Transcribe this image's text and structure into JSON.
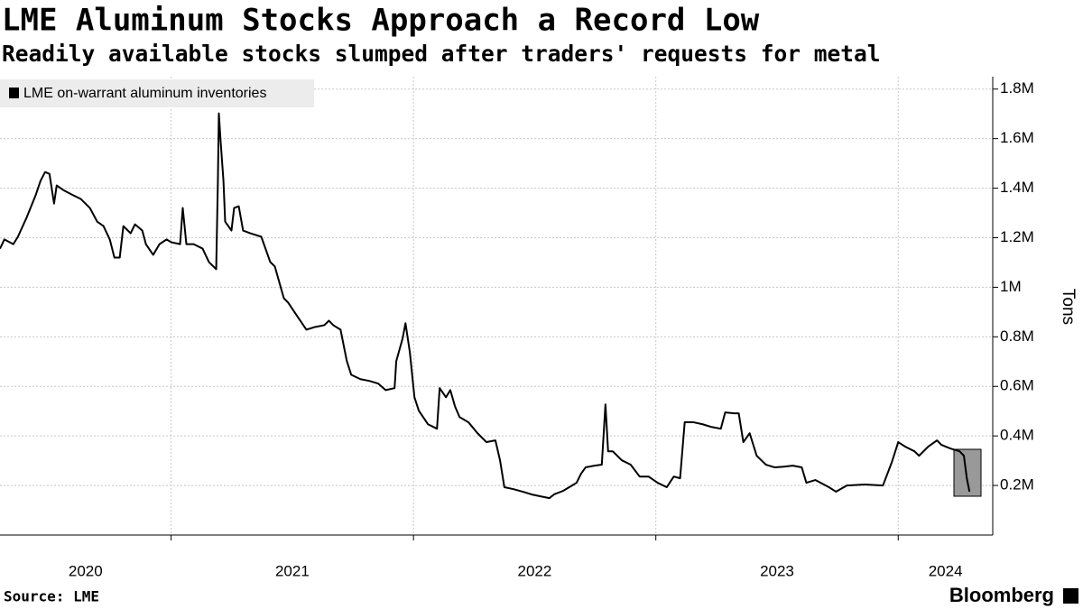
{
  "chart_data": {
    "type": "line",
    "title": "LME Aluminum Stocks Approach a Record Low",
    "subtitle": "Readily available stocks slumped after traders' requests for metal",
    "y_label": "Tons",
    "source": "Source: LME",
    "logo": "Bloomberg",
    "legend_position": "top-left",
    "grid": true,
    "x": [
      2020.294,
      2020.312,
      2020.349,
      2020.368,
      2020.405,
      2020.442,
      2020.461,
      2020.48,
      2020.498,
      2020.517,
      2020.528,
      2020.554,
      2020.591,
      2020.628,
      2020.665,
      2020.695,
      2020.721,
      2020.747,
      2020.766,
      2020.788,
      2020.803,
      2020.833,
      2020.851,
      2020.881,
      2020.896,
      2020.926,
      2020.952,
      2020.981,
      2021.0,
      2021.037,
      2021.048,
      2021.063,
      2021.093,
      2021.13,
      2021.156,
      2021.186,
      2021.193,
      2021.197,
      2021.204,
      2021.216,
      2021.223,
      2021.249,
      2021.26,
      2021.279,
      2021.297,
      2021.327,
      2021.372,
      2021.409,
      2021.428,
      2021.465,
      2021.483,
      2021.52,
      2021.558,
      2021.595,
      2021.632,
      2021.651,
      2021.669,
      2021.699,
      2021.725,
      2021.743,
      2021.781,
      2021.818,
      2021.855,
      2021.885,
      2021.922,
      2021.929,
      2021.955,
      2021.967,
      2021.985,
      2022.004,
      2022.022,
      2022.06,
      2022.097,
      2022.108,
      2022.134,
      2022.152,
      2022.171,
      2022.19,
      2022.227,
      2022.264,
      2022.301,
      2022.338,
      2022.357,
      2022.375,
      2022.413,
      2022.45,
      2022.487,
      2022.524,
      2022.561,
      2022.58,
      2022.617,
      2022.673,
      2022.691,
      2022.71,
      2022.747,
      2022.777,
      2022.792,
      2022.803,
      2022.822,
      2022.859,
      2022.896,
      2022.933,
      2022.97,
      2023.007,
      2023.045,
      2023.074,
      2023.1,
      2023.119,
      2023.156,
      2023.193,
      2023.23,
      2023.268,
      2023.286,
      2023.323,
      2023.342,
      2023.361,
      2023.387,
      2023.416,
      2023.454,
      2023.491,
      2023.528,
      2023.565,
      2023.602,
      2023.621,
      2023.658,
      2023.714,
      2023.743,
      2023.788,
      2023.862,
      2023.937,
      2023.974,
      2024.0,
      2024.03,
      2024.067,
      2024.086,
      2024.123,
      2024.16,
      2024.178,
      2024.216,
      2024.253,
      2024.271,
      2024.283,
      2024.294
    ],
    "series": [
      {
        "name": "LME on-warrant aluminum inventories",
        "color": "#000000",
        "values": [
          1156000,
          1193000,
          1174000,
          1204000,
          1284000,
          1374000,
          1429000,
          1465000,
          1458000,
          1338000,
          1411000,
          1393000,
          1374000,
          1356000,
          1320000,
          1265000,
          1247000,
          1193000,
          1120000,
          1120000,
          1247000,
          1218000,
          1254000,
          1229000,
          1174000,
          1131000,
          1174000,
          1193000,
          1182000,
          1174000,
          1320000,
          1174000,
          1174000,
          1156000,
          1102000,
          1073000,
          1429000,
          1702000,
          1593000,
          1429000,
          1265000,
          1229000,
          1320000,
          1327000,
          1229000,
          1218000,
          1204000,
          1102000,
          1084000,
          956000,
          938000,
          884000,
          829000,
          840000,
          847000,
          865000,
          847000,
          829000,
          702000,
          647000,
          629000,
          622000,
          611000,
          585000,
          593000,
          702000,
          793000,
          855000,
          738000,
          556000,
          502000,
          447000,
          429000,
          593000,
          556000,
          585000,
          520000,
          476000,
          455000,
          411000,
          375000,
          382000,
          302000,
          193000,
          185000,
          175000,
          164000,
          156000,
          149000,
          164000,
          178000,
          211000,
          247000,
          273000,
          280000,
          284000,
          527000,
          338000,
          338000,
          302000,
          284000,
          236000,
          236000,
          211000,
          193000,
          236000,
          229000,
          455000,
          455000,
          447000,
          436000,
          429000,
          495000,
          491000,
          491000,
          375000,
          411000,
          320000,
          284000,
          273000,
          276000,
          280000,
          273000,
          211000,
          222000,
          193000,
          175000,
          200000,
          204000,
          200000,
          295000,
          375000,
          356000,
          338000,
          320000,
          356000,
          382000,
          364000,
          349000,
          338000,
          320000,
          229000,
          175000
        ]
      }
    ],
    "xlim": [
      2020.294,
      2024.39
    ],
    "xticks": [
      2021,
      2022,
      2023,
      2024
    ],
    "x_labels": [
      2020,
      2021,
      2022,
      2023,
      2024
    ],
    "ylim": [
      0,
      1850000
    ],
    "yticks": [
      {
        "value": 200000,
        "label": "0.2M"
      },
      {
        "value": 400000,
        "label": "0.4M"
      },
      {
        "value": 600000,
        "label": "0.6M"
      },
      {
        "value": 800000,
        "label": "0.8M"
      },
      {
        "value": 1000000,
        "label": "1M"
      },
      {
        "value": 1200000,
        "label": "1.2M"
      },
      {
        "value": 1400000,
        "label": "1.4M"
      },
      {
        "value": 1600000,
        "label": "1.6M"
      },
      {
        "value": 1800000,
        "label": "1.8M"
      }
    ]
  }
}
